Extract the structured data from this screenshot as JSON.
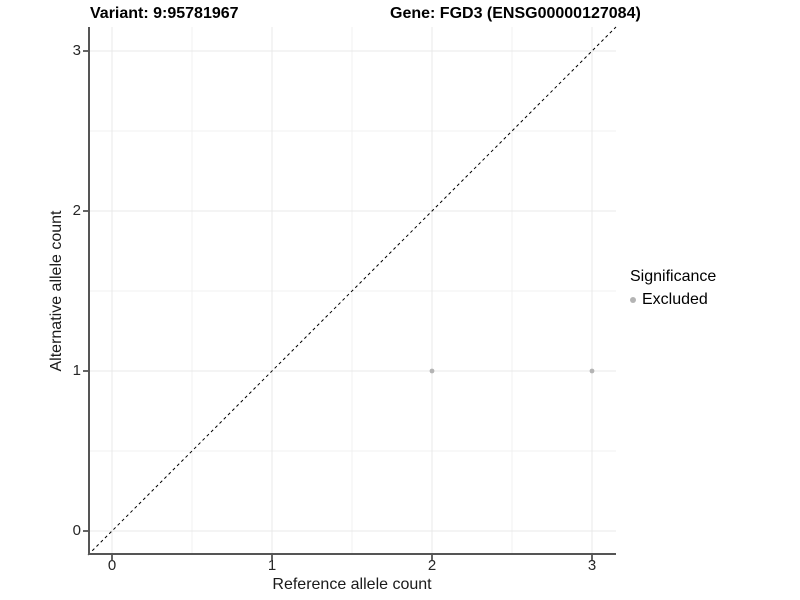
{
  "figure": {
    "title_left": "Variant: 9:95781967",
    "title_right": "Gene: FGD3 (ENSG00000127084)"
  },
  "chart_data": {
    "type": "scatter",
    "title": "Variant: 9:95781967    Gene: FGD3 (ENSG00000127084)",
    "xlabel": "Reference allele count",
    "ylabel": "Alternative allele count",
    "xlim": [
      -0.15,
      3.15
    ],
    "ylim": [
      -0.15,
      3.15
    ],
    "xticks": [
      0,
      1,
      2,
      3
    ],
    "yticks": [
      0,
      1,
      2,
      3
    ],
    "minor_gridlines": [
      0.5,
      1.5,
      2.5
    ],
    "grid": true,
    "series": [
      {
        "name": "Excluded",
        "points": [
          {
            "x": 2,
            "y": 1
          },
          {
            "x": 3,
            "y": 1
          }
        ]
      }
    ],
    "identity_line": {
      "style": "dashed",
      "x1": -0.15,
      "y1": -0.15,
      "x2": 3.15,
      "y2": 3.15
    },
    "legend": {
      "title": "Significance",
      "position": "right",
      "entries": [
        {
          "label": "Excluded",
          "color": "#b4b4b4"
        }
      ]
    },
    "colors": {
      "point": "#b4b4b4",
      "major_grid": "#e9e9e9",
      "minor_grid": "#f1f1f1",
      "axis_line": "#555555",
      "tick_mark": "#333333",
      "tick_label": "#262626",
      "identity_line": "#000000",
      "background": "#ffffff"
    }
  }
}
